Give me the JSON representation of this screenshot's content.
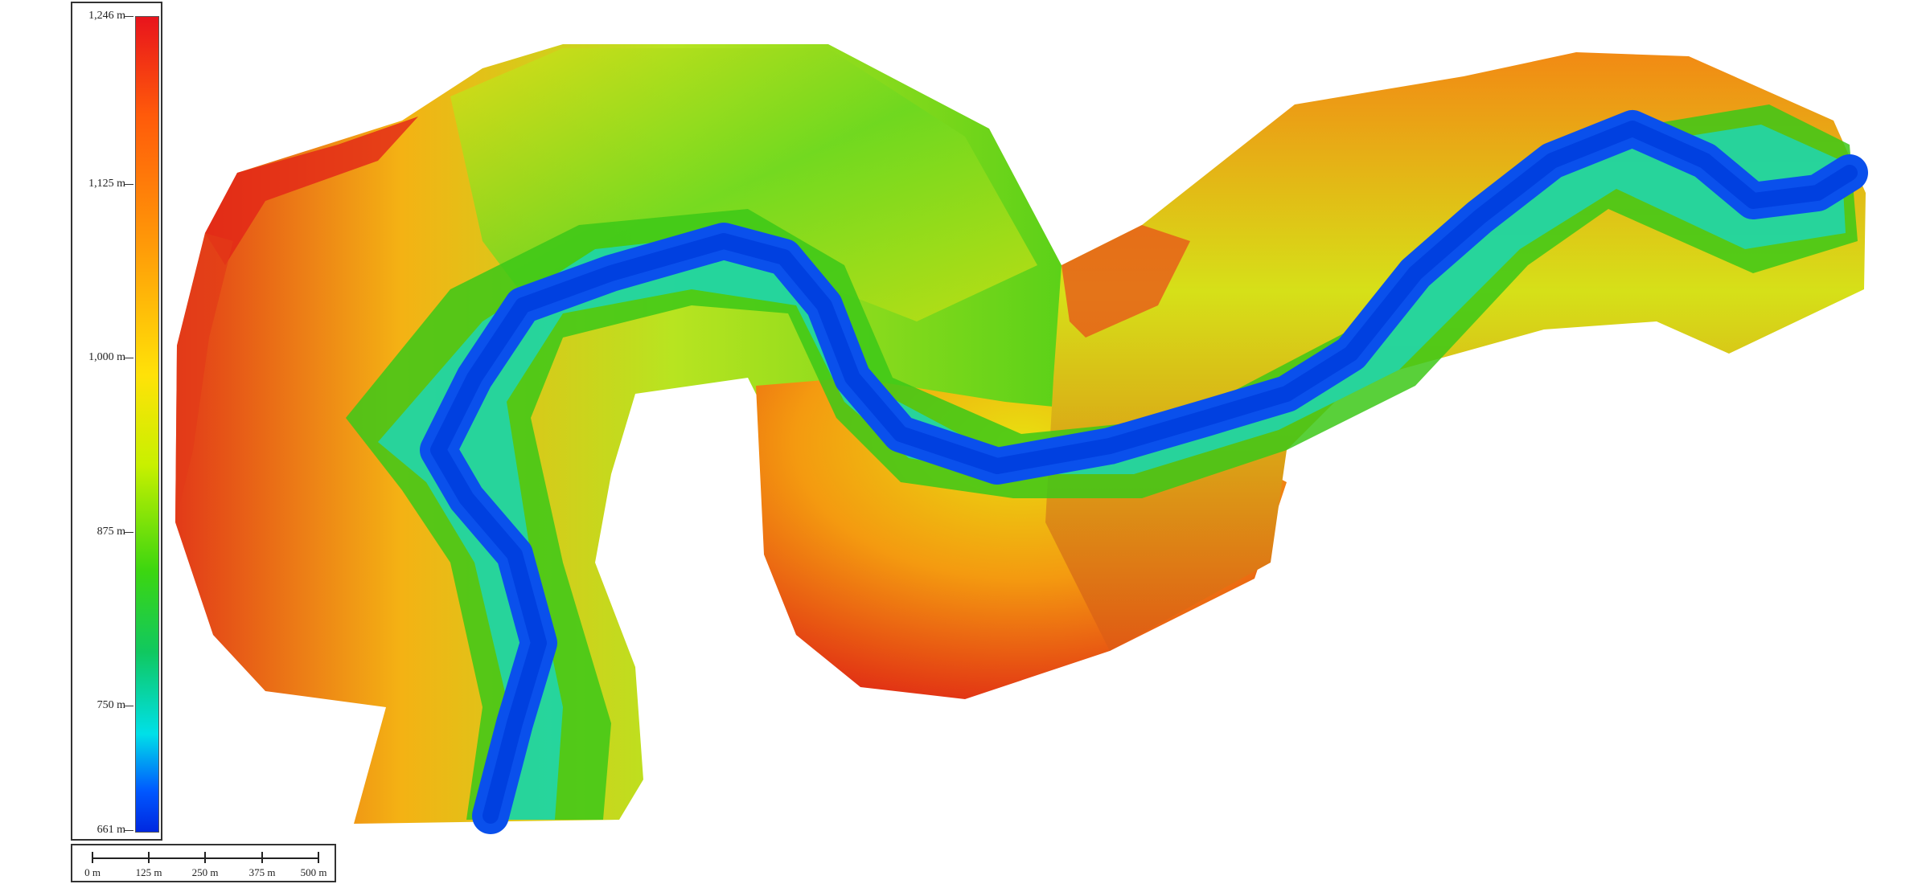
{
  "legend": {
    "ticks": [
      "1,246 m",
      "1,125 m",
      "1,000 m",
      "875 m",
      "750 m",
      "661 m"
    ]
  },
  "scale": {
    "labels": [
      "0 m",
      "125 m",
      "250 m",
      "375 m",
      "500 m"
    ]
  },
  "colors": {
    "high": "#e8141c",
    "upper": "#ff9a08",
    "mid": "#ffe208",
    "lower": "#3cd610",
    "cyan": "#00e0e8",
    "low": "#0048f0"
  }
}
